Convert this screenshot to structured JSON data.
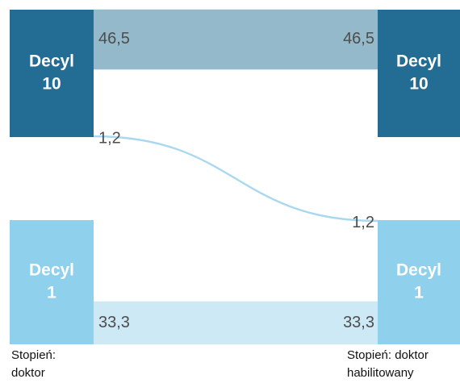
{
  "chart_data": {
    "type": "sankey",
    "nodes": [
      {
        "label": [
          "Decyl",
          "10"
        ],
        "color": "#236d94"
      },
      {
        "label": [
          "Decyl",
          "1"
        ],
        "color": "#8fd0ec"
      },
      {
        "label": [
          "Decyl",
          "10"
        ],
        "color": "#236d94"
      },
      {
        "label": [
          "Decyl",
          "1"
        ],
        "color": "#8fd0ec"
      }
    ],
    "sources": [
      0,
      0,
      1
    ],
    "targets": [
      2,
      3,
      3
    ],
    "values": [
      46.5,
      1.2,
      33.3
    ],
    "value_labels": [
      "46,5",
      "1,2",
      "33,3"
    ],
    "link_colors": [
      "#94b9ca",
      "#a8d8ef",
      "#cde9f5"
    ],
    "columns": [
      [
        "Stopień:",
        "doktor"
      ],
      [
        "Stopień: doktor",
        "habilitowany"
      ]
    ]
  }
}
